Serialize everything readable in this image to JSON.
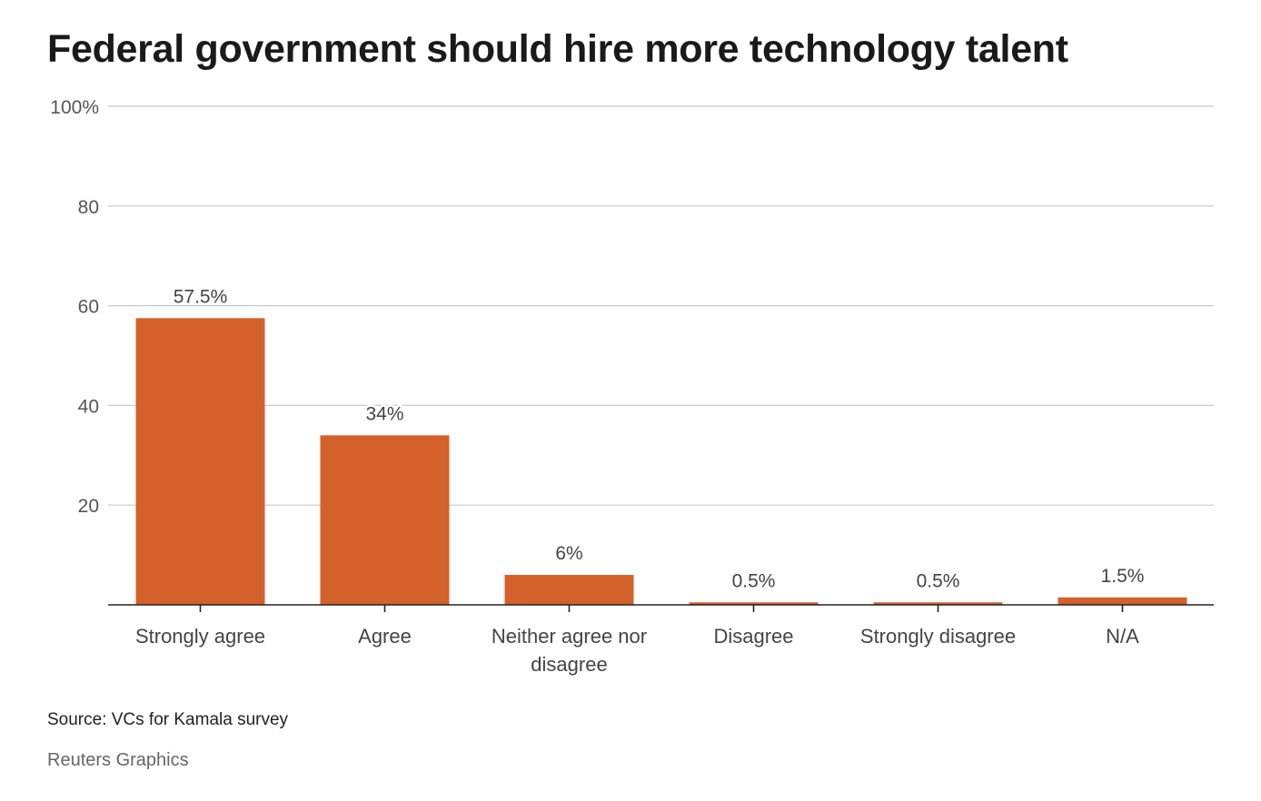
{
  "chart_data": {
    "type": "bar",
    "title": "Federal government should hire more technology talent",
    "categories": [
      "Strongly agree",
      "Agree",
      "Neither agree nor disagree",
      "Disagree",
      "Strongly disagree",
      "N/A"
    ],
    "category_lines": [
      [
        "Strongly agree"
      ],
      [
        "Agree"
      ],
      [
        "Neither agree nor",
        "disagree"
      ],
      [
        "Disagree"
      ],
      [
        "Strongly disagree"
      ],
      [
        "N/A"
      ]
    ],
    "values": [
      57.5,
      34,
      6,
      0.5,
      0.5,
      1.5
    ],
    "data_labels": [
      "57.5%",
      "34%",
      "6%",
      "0.5%",
      "0.5%",
      "1.5%"
    ],
    "yticks": [
      0,
      20,
      40,
      60,
      80,
      100
    ],
    "ytick_labels": [
      "",
      "20",
      "40",
      "60",
      "80",
      "100%"
    ],
    "ylim": [
      0,
      100
    ],
    "xlabel": "",
    "ylabel": "",
    "grid": true,
    "bar_color": "#d4602b",
    "grid_color": "#c8c8c8",
    "axis_color": "#222222"
  },
  "footer": {
    "source": "Source: VCs for Kamala survey",
    "credit": "Reuters Graphics"
  }
}
